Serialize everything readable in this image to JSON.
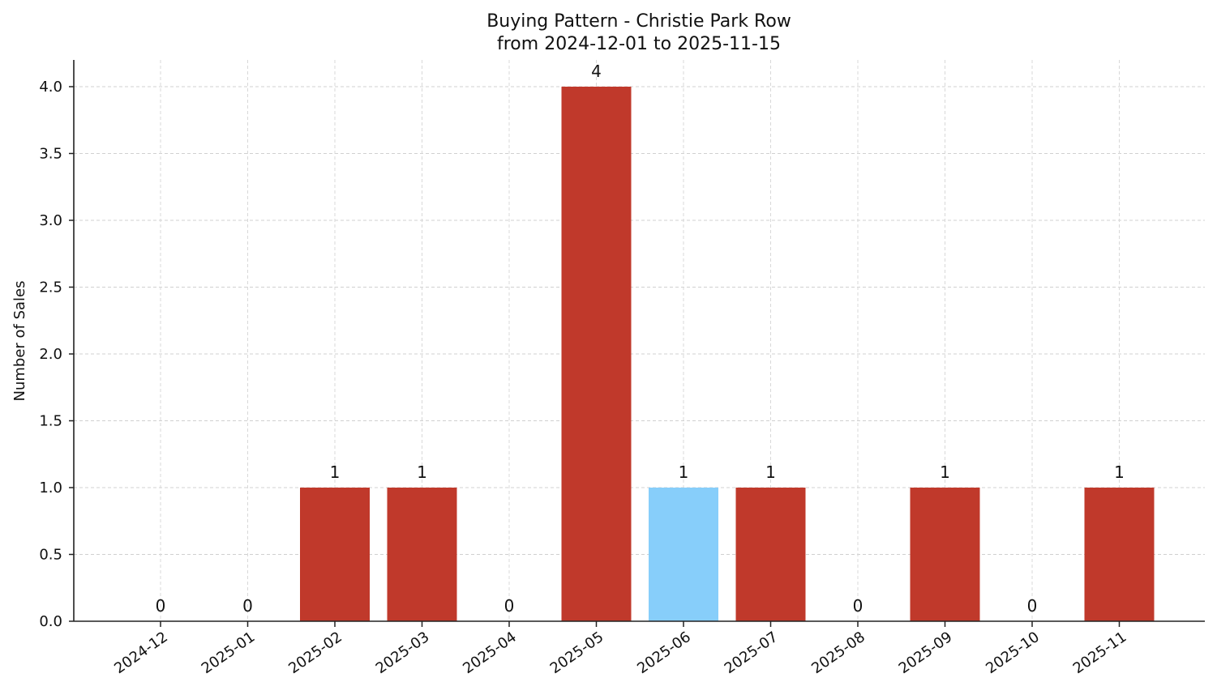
{
  "chart_data": {
    "type": "bar",
    "title": "Buying Pattern - Christie Park Row",
    "subtitle": "from 2024-12-01 to 2025-11-15",
    "xlabel": "",
    "ylabel": "Number of Sales",
    "categories": [
      "2024-12",
      "2025-01",
      "2025-02",
      "2025-03",
      "2025-04",
      "2025-05",
      "2025-06",
      "2025-07",
      "2025-08",
      "2025-09",
      "2025-10",
      "2025-11"
    ],
    "values": [
      0,
      0,
      1,
      1,
      0,
      4,
      1,
      1,
      0,
      1,
      0,
      1
    ],
    "bar_colors": [
      "#c0392b",
      "#c0392b",
      "#c0392b",
      "#c0392b",
      "#c0392b",
      "#c0392b",
      "#87cefa",
      "#c0392b",
      "#c0392b",
      "#c0392b",
      "#c0392b",
      "#c0392b"
    ],
    "data_labels": [
      "0",
      "0",
      "1",
      "1",
      "0",
      "4",
      "1",
      "1",
      "0",
      "1",
      "0",
      "1"
    ],
    "ylim": [
      0,
      4.2
    ],
    "yticks": [
      "0.0",
      "0.5",
      "1.0",
      "1.5",
      "2.0",
      "2.5",
      "3.0",
      "3.5",
      "4.0"
    ],
    "grid": true,
    "grid_style": "dashed",
    "legend": null
  }
}
